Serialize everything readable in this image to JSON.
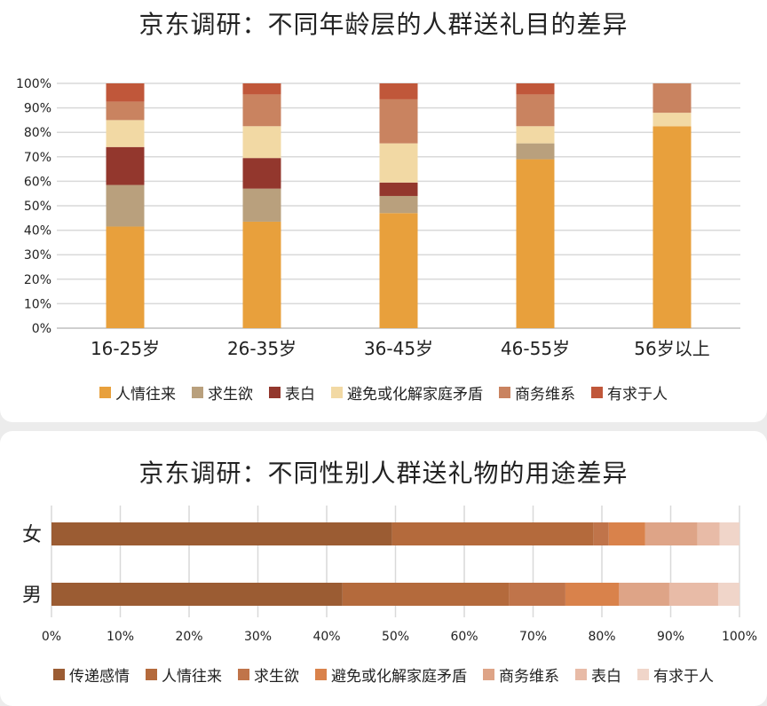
{
  "chart_data": [
    {
      "type": "bar",
      "stacked": true,
      "orientation": "vertical",
      "title": "京东调研：不同年龄层的人群送礼目的差异",
      "categories": [
        "16-25岁",
        "26-35岁",
        "36-45岁",
        "46-55岁",
        "56岁以上"
      ],
      "series": [
        {
          "name": "人情往来",
          "color": "#e8a03c",
          "values": [
            41.5,
            43.5,
            47,
            69,
            82.5
          ]
        },
        {
          "name": "求生欲",
          "color": "#b9a07d",
          "values": [
            17,
            13.5,
            7,
            6.5,
            0
          ]
        },
        {
          "name": "表白",
          "color": "#93372d",
          "values": [
            15.5,
            12.5,
            5.5,
            0,
            0
          ]
        },
        {
          "name": "避免或化解家庭矛盾",
          "color": "#f2d9a4",
          "values": [
            11,
            13,
            16,
            7,
            5.5
          ]
        },
        {
          "name": "商务维系",
          "color": "#c98360",
          "values": [
            7.5,
            13,
            18,
            13,
            12
          ]
        },
        {
          "name": "有求于人",
          "color": "#c0573a",
          "values": [
            7.5,
            4.5,
            6.5,
            4.5,
            0
          ]
        }
      ],
      "ylim": [
        0,
        100
      ],
      "ytick_labels": [
        "0%",
        "10%",
        "20%",
        "30%",
        "40%",
        "50%",
        "60%",
        "70%",
        "80%",
        "90%",
        "100%"
      ],
      "grid": true,
      "legend": "bottom"
    },
    {
      "type": "bar",
      "stacked": true,
      "orientation": "horizontal",
      "title": "京东调研：不同性别人群送礼物的用途差异",
      "categories": [
        "女",
        "男"
      ],
      "series": [
        {
          "name": "传递感情",
          "color": "#9b5c33",
          "values": [
            49.5,
            42.3
          ]
        },
        {
          "name": "人情往来",
          "color": "#b46a3c",
          "values": [
            29.3,
            24.2
          ]
        },
        {
          "name": "求生欲",
          "color": "#c0744a",
          "values": [
            2.2,
            8.2
          ]
        },
        {
          "name": "避免或化解家庭矛盾",
          "color": "#d9824b",
          "values": [
            5.3,
            7.8
          ]
        },
        {
          "name": "商务维系",
          "color": "#dea487",
          "values": [
            7.6,
            7.3
          ]
        },
        {
          "name": "表白",
          "color": "#e8bba7",
          "values": [
            3.2,
            7.1
          ]
        },
        {
          "name": "有求于人",
          "color": "#f0d5c9",
          "values": [
            2.9,
            3.1
          ]
        }
      ],
      "xlim": [
        0,
        100
      ],
      "xtick_labels": [
        "0%",
        "10%",
        "20%",
        "30%",
        "40%",
        "50%",
        "60%",
        "70%",
        "80%",
        "90%",
        "100%"
      ],
      "grid": true,
      "legend": "bottom"
    }
  ]
}
